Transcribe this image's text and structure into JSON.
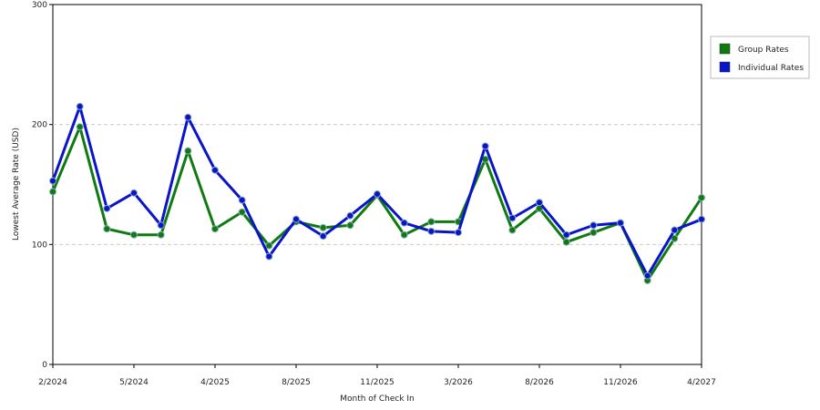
{
  "chart_data": {
    "type": "line",
    "x_label": "Month of Check In",
    "y_label": "Lowest Average Rate (USD)",
    "categories": [
      "2/2024",
      null,
      null,
      "5/2024",
      null,
      null,
      "4/2025",
      null,
      null,
      "8/2025",
      null,
      null,
      "11/2025",
      null,
      null,
      "3/2026",
      null,
      null,
      "8/2026",
      null,
      null,
      "11/2026",
      null,
      null,
      "4/2027"
    ],
    "series": [
      {
        "name": "Group Rates",
        "color": "#0f7a0f",
        "values": [
          144,
          198,
          113,
          108,
          108,
          178,
          113,
          127,
          99,
          119,
          114,
          116,
          141,
          108,
          119,
          119,
          171,
          112,
          130,
          102,
          110,
          118,
          70,
          105,
          139
        ]
      },
      {
        "name": "Individual Rates",
        "color": "#0a14c8",
        "values": [
          153,
          215,
          130,
          143,
          116,
          206,
          162,
          137,
          90,
          121,
          107,
          124,
          142,
          118,
          111,
          110,
          182,
          122,
          135,
          108,
          116,
          118,
          74,
          112,
          121
        ]
      }
    ],
    "ylim": [
      0,
      300
    ],
    "yticks": [
      0,
      100,
      200,
      300
    ],
    "grid": true,
    "legend": "right"
  }
}
